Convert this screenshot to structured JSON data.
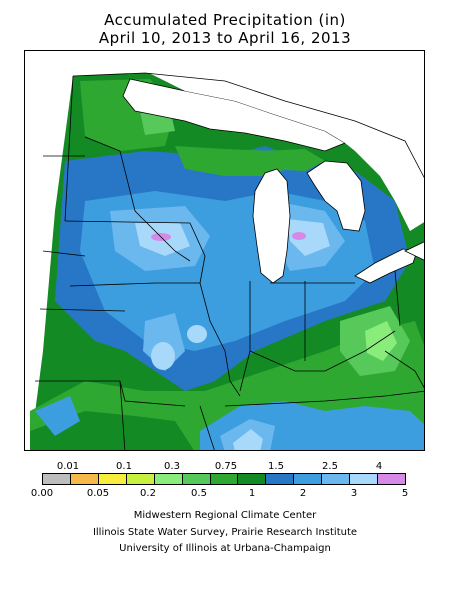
{
  "title_line1": "Accumulated Precipitation (in)",
  "title_line2": "April 10, 2013 to April 16, 2013",
  "legend": {
    "top_labels": [
      "0.01",
      "0.1",
      "0.3",
      "0.75",
      "1.5",
      "2.5",
      "4"
    ],
    "bottom_labels": [
      "0.00",
      "0.05",
      "0.2",
      "0.5",
      "1",
      "2",
      "3",
      "5"
    ],
    "colors": [
      "#bdbdbd",
      "#f5b94a",
      "#f5ee3c",
      "#c8f040",
      "#8aec7a",
      "#57c95a",
      "#2fa832",
      "#148a24",
      "#2877c7",
      "#3c9ddf",
      "#6ab8ee",
      "#a8d8fa",
      "#d68ae8"
    ]
  },
  "credits": {
    "line1": "Midwestern Regional Climate Center",
    "line2": "Illinois State Water Survey, Prairie Research Institute",
    "line3": "University of Illinois at Urbana-Champaign"
  },
  "map_colors": {
    "dark_green": "#148a24",
    "green": "#2fa832",
    "light_green": "#57c95a",
    "pale_green": "#8aec7a",
    "dark_blue": "#2877c7",
    "blue": "#3c9ddf",
    "light_blue": "#6ab8ee",
    "pale_blue": "#a8d8fa",
    "purple": "#d68ae8"
  }
}
